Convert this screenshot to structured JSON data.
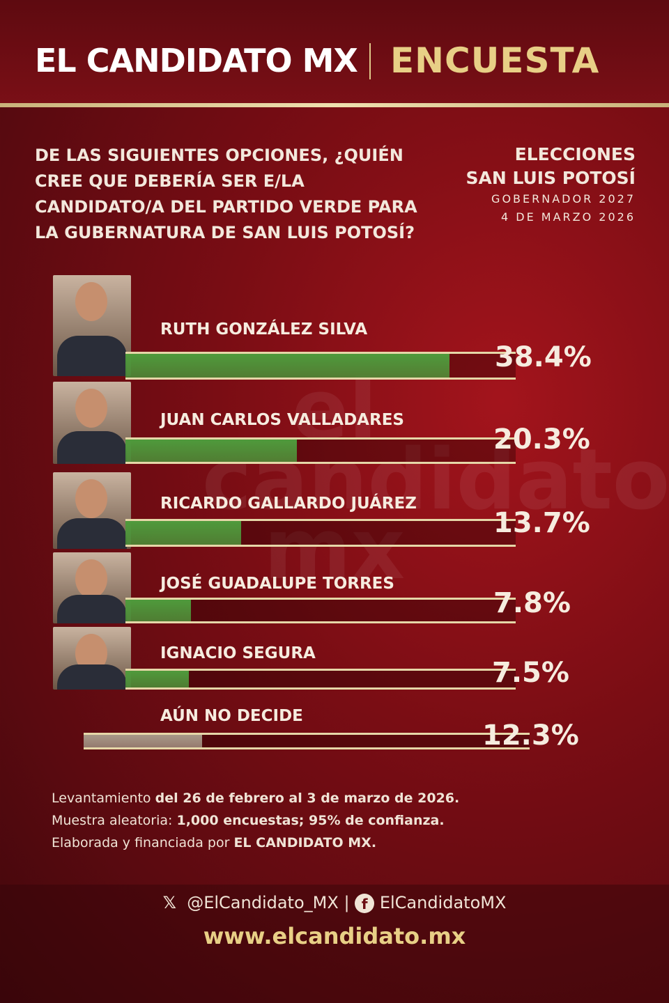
{
  "header": {
    "brand": "EL CANDIDATO MX",
    "tag": "ENCUESTA"
  },
  "question": "DE LAS SIGUIENTES OPCIONES, ¿QUIÉN CREE QUE DEBERÍA SER E/LA CANDIDATO/A DEL PARTIDO VERDE PARA LA GUBERNATURA DE SAN LUIS POTOSÍ?",
  "election": {
    "line1": "ELECCIONES",
    "line2": "SAN LUIS POTOSÍ",
    "line3": "GOBERNADOR 2027",
    "date": "4 DE MARZO 2026"
  },
  "chart_data": {
    "type": "bar",
    "orientation": "horizontal",
    "categories": [
      "RUTH GONZÁLEZ SILVA",
      "JUAN CARLOS VALLADARES",
      "RICARDO GALLARDO JUÁREZ",
      "JOSÉ GUADALUPE TORRES",
      "IGNACIO SEGURA",
      "AÚN NO DECIDE"
    ],
    "values": [
      38.4,
      20.3,
      13.7,
      7.8,
      7.5,
      12.3
    ],
    "labels": [
      "38.4%",
      "20.3%",
      "13.7%",
      "7.8%",
      "7.5%",
      "12.3%"
    ],
    "colors": [
      "#4f9a3c",
      "#4f9a3c",
      "#4f9a3c",
      "#4f9a3c",
      "#4f9a3c",
      "#a89888"
    ]
  },
  "method": {
    "l1a": "Levantamiento ",
    "l1b": "del 26 de febrero al 3 de marzo de 2026.",
    "l2a": "Muestra aleatoria: ",
    "l2b": "1,000 encuestas; 95% de confianza.",
    "l3a": "Elaborada y financiada por ",
    "l3b": "EL CANDIDATO MX."
  },
  "watermark": "el candidato mx",
  "footer": {
    "x_handle": "@ElCandidato_MX",
    "divider": "|",
    "fb_handle": "ElCandidatoMX",
    "url": "www.elcandidato.mx"
  }
}
